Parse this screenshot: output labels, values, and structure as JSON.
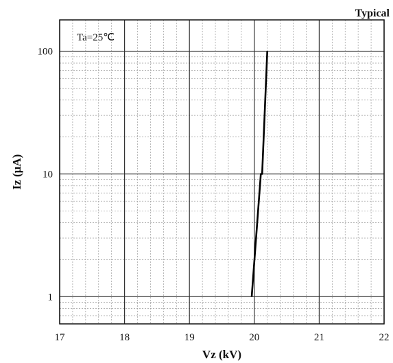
{
  "chart_data": {
    "type": "line",
    "corner_label": "Typical",
    "annotation": "Ta=25℃",
    "xlabel": "Vz  (kV)",
    "ylabel": "Iz (μA)",
    "xlim": [
      17,
      22
    ],
    "ylim": [
      0.6,
      180
    ],
    "y_scale": "log",
    "grid": true,
    "x_ticks": [
      17,
      18,
      19,
      20,
      21,
      22
    ],
    "x_tick_labels": [
      "17",
      "18",
      "19",
      "20",
      "21",
      "22"
    ],
    "y_ticks": [
      1,
      10,
      100
    ],
    "y_tick_labels": [
      "1",
      "10",
      "100"
    ],
    "colors": {
      "line": "#000000",
      "grid_major": "#333333",
      "grid_minor": "#9a9a9a",
      "background": "#ffffff"
    },
    "series": [
      {
        "x": [
          19.96,
          20.1,
          20.12,
          20.2
        ],
        "y": [
          1,
          10,
          10,
          100
        ]
      }
    ]
  }
}
